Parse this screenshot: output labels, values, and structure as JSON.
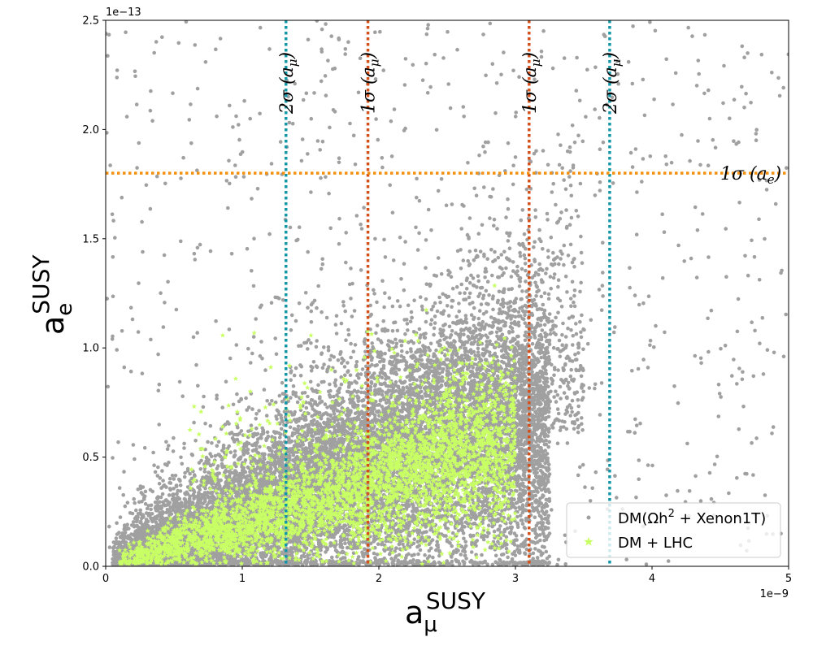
{
  "chart_data": {
    "type": "scatter",
    "x_axis": {
      "label_base": "a",
      "label_sub": "μ",
      "label_sup": "SUSY",
      "lim": [
        0,
        5
      ],
      "ticks": [
        0,
        1,
        2,
        3,
        4,
        5
      ],
      "tick_labels": [
        "0",
        "1",
        "2",
        "3",
        "4",
        "5"
      ],
      "offset_text": "1e−9"
    },
    "y_axis": {
      "label_base": "a",
      "label_sub": "e",
      "label_sup": "SUSY",
      "lim": [
        0,
        2.5
      ],
      "ticks": [
        0,
        0.5,
        1.0,
        1.5,
        2.0,
        2.5
      ],
      "tick_labels": [
        "0.0",
        "0.5",
        "1.0",
        "1.5",
        "2.0",
        "2.5"
      ],
      "offset_text": "1e−13"
    },
    "grid": false,
    "legend_position": "bottom-right",
    "series": [
      {
        "name": "DM(Ωh² + Xenon1T)",
        "legend_main": "DM(Ωh",
        "legend_sup": "2",
        "legend_rest": " + Xenon1T)",
        "color": "#a0a0a0",
        "marker": "dot",
        "approx_points": 15000,
        "ridge": [
          [
            0.1,
            0.02
          ],
          [
            0.5,
            0.1
          ],
          [
            1.0,
            0.2
          ],
          [
            1.5,
            0.33
          ],
          [
            2.0,
            0.45
          ],
          [
            2.5,
            0.55
          ],
          [
            3.0,
            0.62
          ]
        ],
        "x_range": [
          0.0,
          5.0
        ],
        "y_range": [
          0.0,
          2.5
        ]
      },
      {
        "name": "DM + LHC",
        "legend_main": "DM + LHC",
        "color": "#c8ff64",
        "marker": "star",
        "approx_points": 4000,
        "ridge": [
          [
            0.1,
            0.02
          ],
          [
            0.5,
            0.1
          ],
          [
            1.0,
            0.18
          ],
          [
            1.5,
            0.28
          ],
          [
            2.0,
            0.38
          ],
          [
            2.3,
            0.45
          ],
          [
            2.8,
            0.55
          ]
        ],
        "x_range": [
          0.1,
          3.1
        ],
        "y_range": [
          0.0,
          1.3
        ]
      }
    ],
    "reference_lines": [
      {
        "orientation": "vertical",
        "x": 1.32,
        "label": "2σ (a",
        "label_sub": "μ",
        "label_end": ")",
        "color": "#1297a8"
      },
      {
        "orientation": "vertical",
        "x": 1.92,
        "label": "1σ (a",
        "label_sub": "μ",
        "label_end": ")",
        "color": "#d4501a"
      },
      {
        "orientation": "vertical",
        "x": 3.1,
        "label": "1σ (a",
        "label_sub": "μ",
        "label_end": ")",
        "color": "#d4501a"
      },
      {
        "orientation": "vertical",
        "x": 3.69,
        "label": "2σ (a",
        "label_sub": "μ",
        "label_end": ")",
        "color": "#1297a8"
      },
      {
        "orientation": "horizontal",
        "y": 1.8,
        "label": "1σ (a",
        "label_sub": "e",
        "label_end": ")",
        "color": "#f5900f"
      }
    ]
  }
}
